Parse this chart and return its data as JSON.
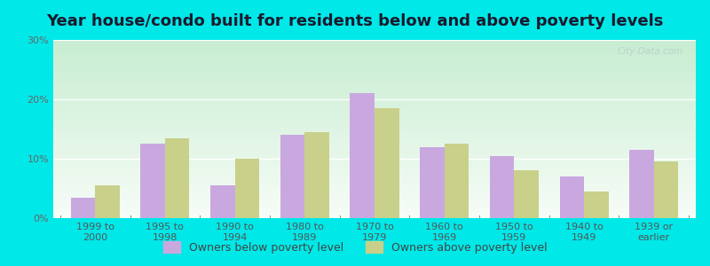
{
  "title": "Year house/condo built for residents below and above poverty levels",
  "categories": [
    "1999 to\n2000",
    "1995 to\n1998",
    "1990 to\n1994",
    "1980 to\n1989",
    "1970 to\n1979",
    "1960 to\n1969",
    "1950 to\n1959",
    "1940 to\n1949",
    "1939 or\nearlier"
  ],
  "below_poverty": [
    3.5,
    12.5,
    5.5,
    14.0,
    21.0,
    12.0,
    10.5,
    7.0,
    11.5
  ],
  "above_poverty": [
    5.5,
    13.5,
    10.0,
    14.5,
    18.5,
    12.5,
    8.0,
    4.5,
    9.5
  ],
  "below_color": "#c9a8e0",
  "above_color": "#c8d08a",
  "outer_bg": "#00e8e8",
  "ylim": [
    0,
    30
  ],
  "yticks": [
    0,
    10,
    20,
    30
  ],
  "ytick_labels": [
    "0%",
    "10%",
    "20%",
    "30%"
  ],
  "legend_below": "Owners below poverty level",
  "legend_above": "Owners above poverty level",
  "title_fontsize": 13,
  "tick_fontsize": 8,
  "legend_fontsize": 9,
  "watermark": "City-Data.com"
}
